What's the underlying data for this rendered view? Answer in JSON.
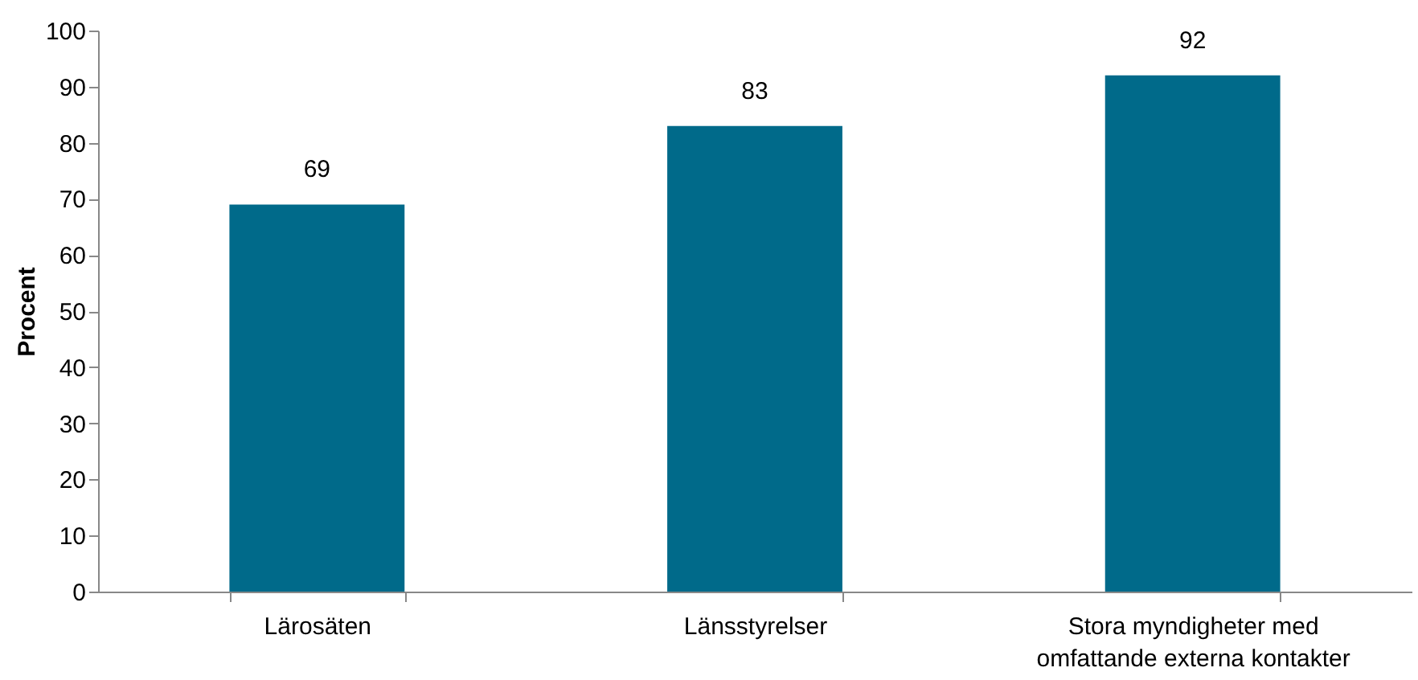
{
  "chart_data": {
    "type": "bar",
    "ylabel": "Procent",
    "categories": [
      "Lärosäten",
      "Länsstyrelser",
      "Stora myndigheter med omfattande externa kontakter"
    ],
    "values": [
      69,
      83,
      92
    ],
    "color": "#006a8a",
    "ylim": [
      0,
      100
    ],
    "yticks": [
      0,
      10,
      20,
      30,
      40,
      50,
      60,
      70,
      80,
      90,
      100
    ],
    "grid": false,
    "data_labels": true
  }
}
